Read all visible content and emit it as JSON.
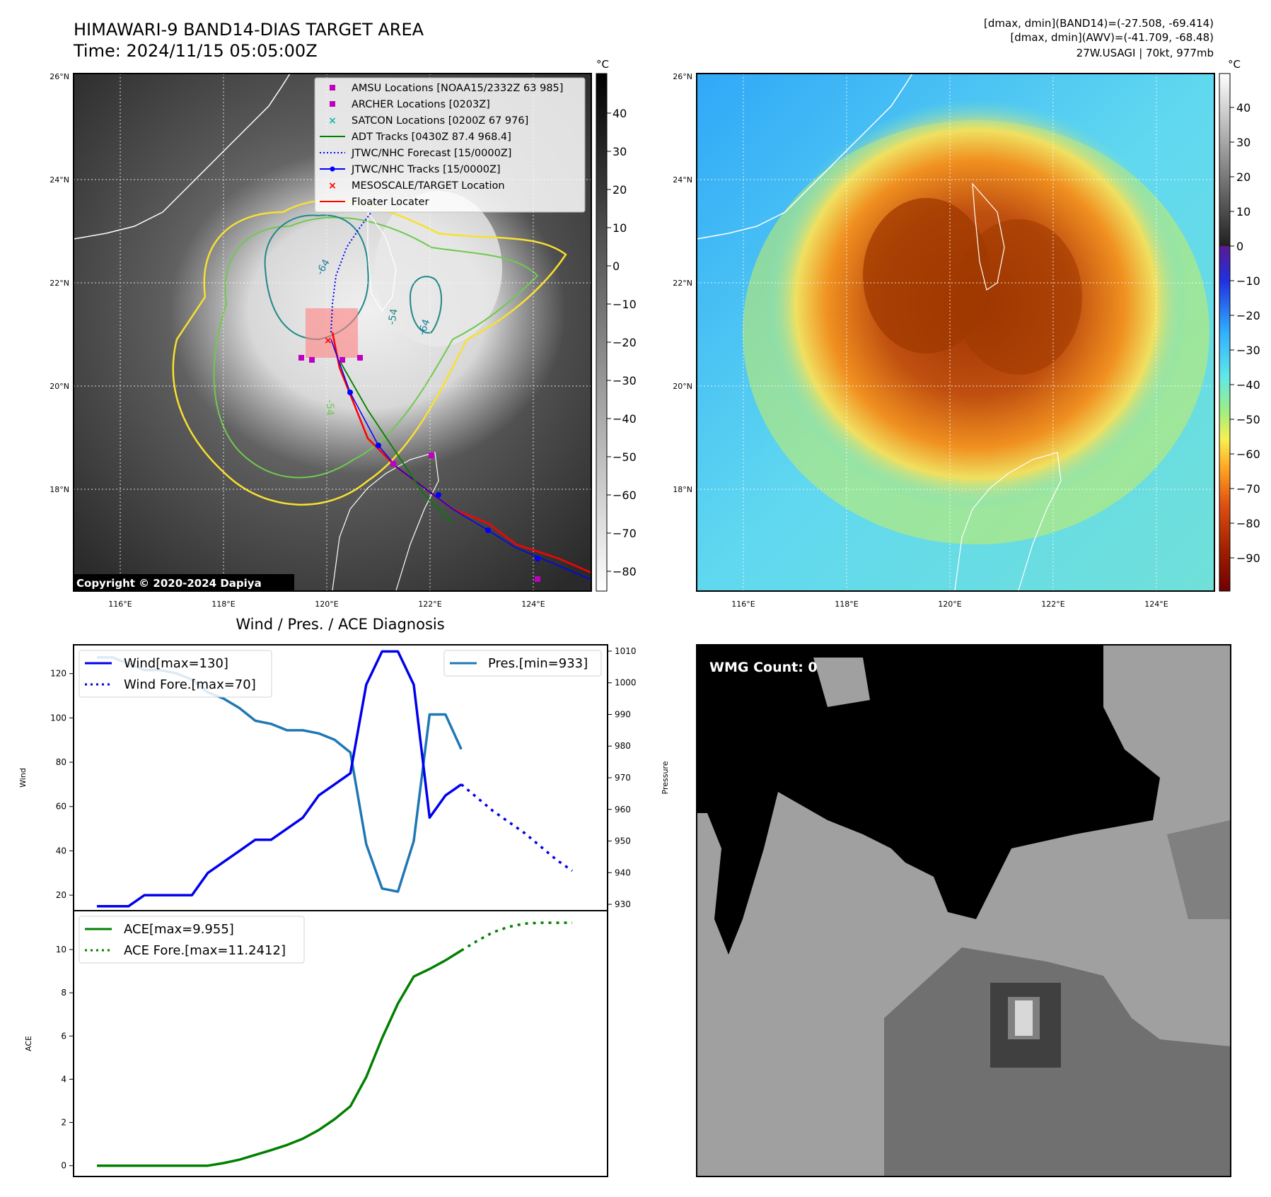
{
  "header": {
    "title": "HIMAWARI-9 BAND14-DIAS TARGET AREA",
    "time": "Time: 2024/11/15 05:05:00Z",
    "stats_band14": "[dmax, dmin](BAND14)=(-27.508, -69.414)",
    "stats_awv": "[dmax, dmin](AWV)=(-41.709, -68.48)",
    "storm": "27W.USAGI | 70kt, 977mb"
  },
  "map": {
    "lat_labels": [
      "26°N",
      "24°N",
      "22°N",
      "20°N",
      "18°N"
    ],
    "lon_labels": [
      "116°E",
      "118°E",
      "120°E",
      "122°E",
      "124°E"
    ],
    "copyright": "Copyright © 2020-2024 Dapiya",
    "contour_labels": [
      "-64",
      "-54",
      "-54",
      "-64"
    ],
    "legend": [
      {
        "label": "AMSU Locations [NOAA15/2332Z 63 985]",
        "marker": "square",
        "color": "#c000c0"
      },
      {
        "label": "ARCHER Locations [0203Z]",
        "marker": "square",
        "color": "#c000c0"
      },
      {
        "label": "SATCON Locations [0200Z 67 976]",
        "marker": "x",
        "color": "#10b8b0"
      },
      {
        "label": "ADT Tracks [0430Z 87.4 968.4]",
        "marker": "line",
        "color": "#008000"
      },
      {
        "label": "JTWC/NHC Forecast [15/0000Z]",
        "marker": "dotted",
        "color": "#0000ff"
      },
      {
        "label": "JTWC/NHC Tracks [15/0000Z]",
        "marker": "line-dot",
        "color": "#0000ff"
      },
      {
        "label": "MESOSCALE/TARGET Location",
        "marker": "x",
        "color": "#ff0000"
      },
      {
        "label": "Floater Locater",
        "marker": "line",
        "color": "#ff0000"
      }
    ],
    "ir_colorbar": {
      "unit": "°C",
      "ticks": [
        "40",
        "30",
        "20",
        "10",
        "0",
        "−10",
        "−20",
        "−30",
        "−40",
        "−50",
        "−60",
        "−70",
        "−80"
      ]
    },
    "color_colorbar": {
      "unit": "°C",
      "ticks": [
        "40",
        "30",
        "20",
        "10",
        "0",
        "−10",
        "−20",
        "−30",
        "−40",
        "−50",
        "−60",
        "−70",
        "−80",
        "−90"
      ]
    }
  },
  "diagnosis": {
    "title": "Wind / Pres. / ACE Diagnosis",
    "wind_legend": [
      "Wind[max=130]",
      "Wind Fore.[max=70]"
    ],
    "pres_legend": "Pres.[min=933]",
    "ace_legend": [
      "ACE[max=9.955]",
      "ACE Fore.[max=11.2412]"
    ],
    "ylabel_wind": "Wind",
    "ylabel_pres": "Pressure",
    "ylabel_ace": "ACE",
    "wind_ticks": [
      "20",
      "40",
      "60",
      "80",
      "100",
      "120"
    ],
    "pres_ticks": [
      "930",
      "940",
      "950",
      "960",
      "970",
      "980",
      "990",
      "1000",
      "1010"
    ],
    "ace_ticks": [
      "0",
      "2",
      "4",
      "6",
      "8",
      "10"
    ]
  },
  "wmg": {
    "label": "WMG Count: 0"
  },
  "chart_data": [
    {
      "type": "line",
      "title": "Wind / Pres. / ACE Diagnosis",
      "ylabel": "Wind",
      "ylim": [
        13,
        133
      ],
      "series": [
        {
          "name": "Wind[max=130]",
          "color": "#0000ee",
          "x": [
            0,
            1,
            2,
            3,
            4,
            5,
            6,
            7,
            8,
            9,
            10,
            11,
            12,
            13,
            14,
            15,
            16,
            17,
            18,
            19,
            20,
            21,
            22,
            23
          ],
          "values": [
            15,
            15,
            15,
            20,
            20,
            20,
            20,
            30,
            35,
            40,
            45,
            45,
            50,
            55,
            65,
            70,
            75,
            115,
            130,
            130,
            115,
            55,
            65,
            70
          ]
        },
        {
          "name": "Wind Fore.[max=70]",
          "color": "#0000ee",
          "dashed": true,
          "x": [
            23,
            24,
            25,
            26,
            27,
            28,
            29,
            30
          ],
          "values": [
            70,
            64,
            58,
            53,
            48,
            42,
            36,
            31
          ]
        }
      ]
    },
    {
      "type": "line",
      "ylabel": "Pressure",
      "ylim": [
        928,
        1012
      ],
      "series": [
        {
          "name": "Pres.[min=933]",
          "color": "#1f77b4",
          "x": [
            0,
            1,
            2,
            3,
            4,
            5,
            6,
            7,
            8,
            9,
            10,
            11,
            12,
            13,
            14,
            15,
            16,
            17,
            18,
            19,
            20,
            21,
            22,
            23
          ],
          "values": [
            1008,
            1008,
            1006,
            1004,
            1004,
            1003,
            1001,
            997,
            995,
            992,
            988,
            987,
            985,
            985,
            984,
            982,
            978,
            949,
            935,
            934,
            950,
            990,
            990,
            979
          ]
        }
      ]
    },
    {
      "type": "line",
      "ylabel": "ACE",
      "ylim": [
        -0.5,
        11.8
      ],
      "series": [
        {
          "name": "ACE[max=9.955]",
          "color": "#008000",
          "x": [
            0,
            1,
            2,
            3,
            4,
            5,
            6,
            7,
            8,
            9,
            10,
            11,
            12,
            13,
            14,
            15,
            16,
            17,
            18,
            19,
            20,
            21,
            22,
            23
          ],
          "values": [
            0,
            0,
            0,
            0,
            0,
            0,
            0,
            0,
            0.12,
            0.28,
            0.5,
            0.72,
            0.96,
            1.25,
            1.65,
            2.15,
            2.75,
            4.1,
            5.9,
            7.5,
            8.75,
            9.1,
            9.5,
            9.955
          ]
        },
        {
          "name": "ACE Fore.[max=11.2412]",
          "color": "#008000",
          "dashed": true,
          "x": [
            23,
            24,
            25,
            26,
            27,
            28,
            29,
            30
          ],
          "values": [
            9.955,
            10.4,
            10.8,
            11.05,
            11.2,
            11.24,
            11.24,
            11.24
          ]
        }
      ]
    }
  ]
}
